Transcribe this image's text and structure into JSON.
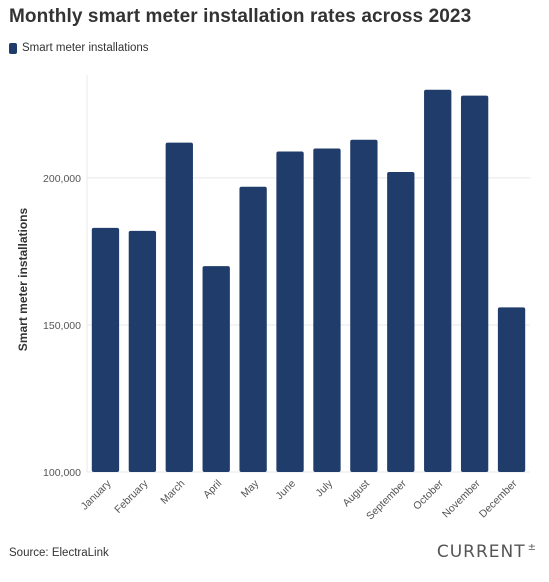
{
  "title": "Monthly smart meter installation rates across 2023",
  "source": "Source: ElectraLink",
  "brand": {
    "name": "CURRENT",
    "mark": "±"
  },
  "colors": {
    "bar": "#1f3c6a",
    "grid": "#e8e8e8",
    "axis": "#cccccc"
  },
  "chart_data": {
    "type": "bar",
    "ylabel": "Smart meter installations",
    "xlabel": "",
    "categories": [
      "January",
      "February",
      "March",
      "April",
      "May",
      "June",
      "July",
      "August",
      "September",
      "October",
      "November",
      "December"
    ],
    "series": [
      {
        "name": "Smart meter installations",
        "values": [
          183000,
          182000,
          212000,
          170000,
          197000,
          209000,
          210000,
          213000,
          202000,
          230000,
          228000,
          156000
        ]
      }
    ],
    "ylim": [
      100000,
      235000
    ],
    "yticks": [
      100000,
      150000,
      200000
    ],
    "ytick_labels": [
      "100,000",
      "150,000",
      "200,000"
    ],
    "grid": true,
    "legend_position": "top-left"
  }
}
